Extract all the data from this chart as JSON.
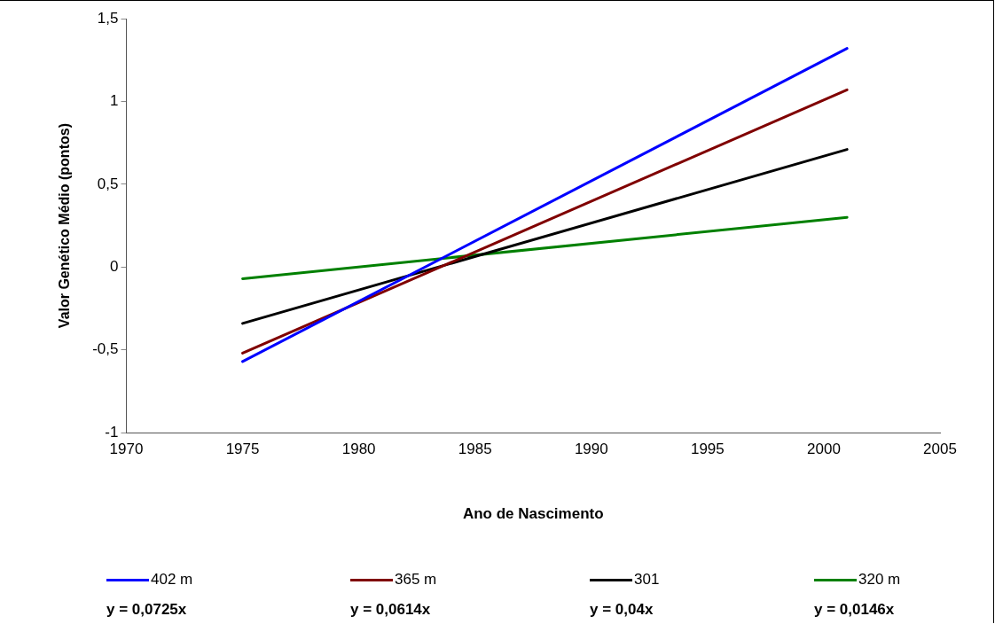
{
  "chart_data": {
    "type": "line",
    "xlabel": "Ano de Nascimento",
    "ylabel": "Valor Genético Médio (pontos)",
    "x": [
      1975,
      2001
    ],
    "series": [
      {
        "name": "402 m",
        "color": "#0000ff",
        "values": [
          -0.57,
          1.32
        ]
      },
      {
        "name": "365 m",
        "color": "#800000",
        "values": [
          -0.52,
          1.07
        ]
      },
      {
        "name": "301",
        "color": "#000000",
        "values": [
          -0.34,
          0.71
        ]
      },
      {
        "name": "320 m",
        "color": "#008000",
        "values": [
          -0.07,
          0.3
        ]
      }
    ],
    "xlim": [
      1970,
      2005
    ],
    "xticks": [
      1970,
      1975,
      1980,
      1985,
      1990,
      1995,
      2000,
      2005
    ],
    "ylim": [
      -1,
      1.5
    ],
    "yticks": [
      {
        "value": -1,
        "label": "-1"
      },
      {
        "value": -0.5,
        "label": "-0,5"
      },
      {
        "value": 0,
        "label": "0"
      },
      {
        "value": 0.5,
        "label": "0,5"
      },
      {
        "value": 1,
        "label": "1"
      },
      {
        "value": 1.5,
        "label": "1,5"
      }
    ],
    "annotations": [
      "y = 0,0725x",
      "y = 0,0614x",
      "y = 0,04x",
      "y = 0,0146x"
    ],
    "legend": "bottom",
    "grid": false,
    "marker": "none",
    "line_style": "solid"
  }
}
